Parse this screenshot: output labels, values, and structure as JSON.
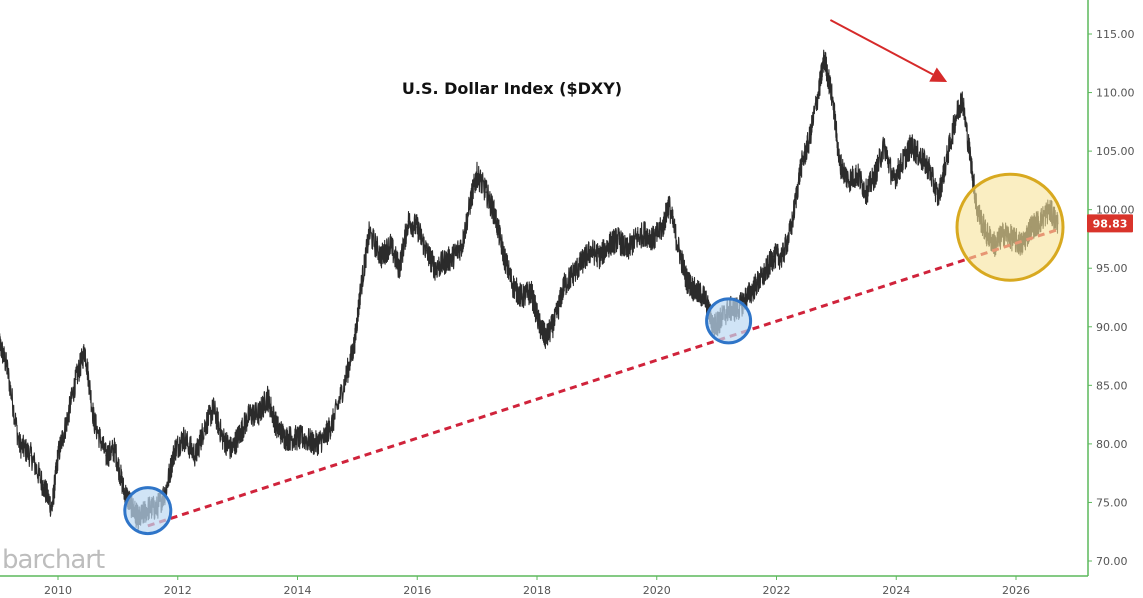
{
  "chart_data": {
    "type": "line",
    "title": "U.S. Dollar Index ($DXY)",
    "xlabel": "",
    "ylabel": "",
    "xlim": [
      2009.0,
      2026.9
    ],
    "ylim": [
      69.3,
      117.5
    ],
    "y_ticks": [
      70,
      75,
      80,
      85,
      90,
      95,
      100,
      105,
      110,
      115
    ],
    "y_tick_labels": [
      "70.00",
      "75.00",
      "80.00",
      "85.00",
      "90.00",
      "95.00",
      "100.00",
      "105.00",
      "110.00",
      "115.00"
    ],
    "x_ticks": [
      2010,
      2012,
      2014,
      2016,
      2018,
      2020,
      2022,
      2024,
      2026
    ],
    "x_tick_labels": [
      "2010",
      "2012",
      "2014",
      "2016",
      "2018",
      "2020",
      "2022",
      "2024",
      "2026"
    ],
    "grid": false,
    "y_axis_side": "right",
    "last_value": 98.83,
    "last_value_label": "98.83",
    "series": [
      {
        "color": "#2b2b2b",
        "x": [
          2009.0,
          2009.15,
          2009.35,
          2009.55,
          2009.75,
          2009.9,
          2010.0,
          2010.15,
          2010.3,
          2010.45,
          2010.6,
          2010.8,
          2010.95,
          2011.1,
          2011.25,
          2011.35,
          2011.5,
          2011.65,
          2011.8,
          2011.95,
          2012.1,
          2012.3,
          2012.45,
          2012.6,
          2012.75,
          2012.9,
          2013.05,
          2013.2,
          2013.35,
          2013.5,
          2013.65,
          2013.8,
          2013.95,
          2014.1,
          2014.3,
          2014.45,
          2014.6,
          2014.8,
          2014.95,
          2015.05,
          2015.2,
          2015.4,
          2015.55,
          2015.7,
          2015.85,
          2016.0,
          2016.15,
          2016.3,
          2016.45,
          2016.6,
          2016.75,
          2016.9,
          2017.0,
          2017.15,
          2017.3,
          2017.45,
          2017.6,
          2017.75,
          2017.9,
          2018.05,
          2018.15,
          2018.3,
          2018.45,
          2018.6,
          2018.75,
          2018.9,
          2019.05,
          2019.2,
          2019.35,
          2019.5,
          2019.65,
          2019.8,
          2019.95,
          2020.1,
          2020.2,
          2020.35,
          2020.5,
          2020.65,
          2020.8,
          2020.95,
          2021.05,
          2021.2,
          2021.35,
          2021.5,
          2021.65,
          2021.8,
          2021.95,
          2022.1,
          2022.25,
          2022.4,
          2022.55,
          2022.7,
          2022.8,
          2022.95,
          2023.05,
          2023.2,
          2023.35,
          2023.5,
          2023.65,
          2023.8,
          2023.95,
          2024.1,
          2024.25,
          2024.4,
          2024.55,
          2024.7,
          2024.85,
          2025.0,
          2025.1,
          2025.25,
          2025.35,
          2025.5,
          2025.65,
          2025.8,
          2025.95,
          2026.1,
          2026.25,
          2026.4,
          2026.55,
          2026.7
        ],
        "values": [
          89.0,
          86.5,
          80.0,
          79.0,
          76.5,
          74.5,
          79.0,
          82.0,
          85.5,
          88.0,
          82.0,
          79.0,
          79.5,
          76.0,
          74.5,
          73.5,
          74.5,
          74.5,
          76.0,
          79.5,
          80.5,
          79.0,
          81.5,
          83.0,
          80.5,
          79.5,
          81.0,
          82.5,
          82.5,
          84.0,
          81.5,
          80.5,
          80.5,
          80.5,
          80.0,
          80.5,
          82.0,
          85.5,
          88.5,
          93.0,
          98.0,
          96.0,
          97.0,
          95.0,
          99.0,
          98.5,
          96.5,
          95.0,
          95.5,
          96.0,
          97.0,
          101.0,
          103.0,
          101.5,
          99.5,
          96.0,
          93.5,
          92.5,
          93.0,
          90.0,
          89.0,
          90.5,
          93.5,
          94.5,
          95.5,
          96.5,
          96.0,
          97.0,
          97.5,
          96.5,
          97.5,
          98.0,
          97.5,
          98.5,
          100.5,
          97.0,
          94.0,
          93.0,
          92.5,
          90.0,
          90.5,
          91.5,
          91.5,
          92.5,
          93.5,
          94.5,
          96.0,
          96.0,
          98.5,
          103.5,
          106.0,
          110.0,
          113.0,
          109.0,
          104.0,
          102.5,
          103.0,
          101.5,
          103.0,
          105.5,
          102.5,
          104.0,
          105.5,
          104.5,
          103.5,
          101.0,
          104.5,
          108.0,
          109.5,
          104.0,
          100.0,
          98.0,
          97.0,
          98.0,
          97.5,
          97.0,
          98.5,
          99.0,
          100.0,
          98.8
        ]
      }
    ],
    "annotations": {
      "trendline": {
        "x": [
          2011.5,
          2026.7
        ],
        "y": [
          73.0,
          98.3
        ],
        "color": "#d0233b",
        "style": "dashed"
      },
      "circles": [
        {
          "x": 2011.5,
          "y": 74.3,
          "color": "#2f75c8",
          "fill": "#bcd8f2"
        },
        {
          "x": 2021.2,
          "y": 90.5,
          "color": "#2f75c8",
          "fill": "#bcd8f2"
        },
        {
          "x": 2025.9,
          "y": 98.5,
          "color": "#d8a920",
          "fill": "#f7e39a"
        }
      ],
      "arrow": {
        "from_x": 2022.9,
        "from_y": 116.2,
        "to_x": 2024.85,
        "to_y": 110.9,
        "color": "#d62a2a"
      }
    }
  },
  "branding": {
    "logo_text": "barchart"
  },
  "colors": {
    "price_line": "#2b2b2b",
    "axis_line": "#5cb85c",
    "last_label_bg": "#d9342b",
    "trendline": "#d0233b"
  }
}
